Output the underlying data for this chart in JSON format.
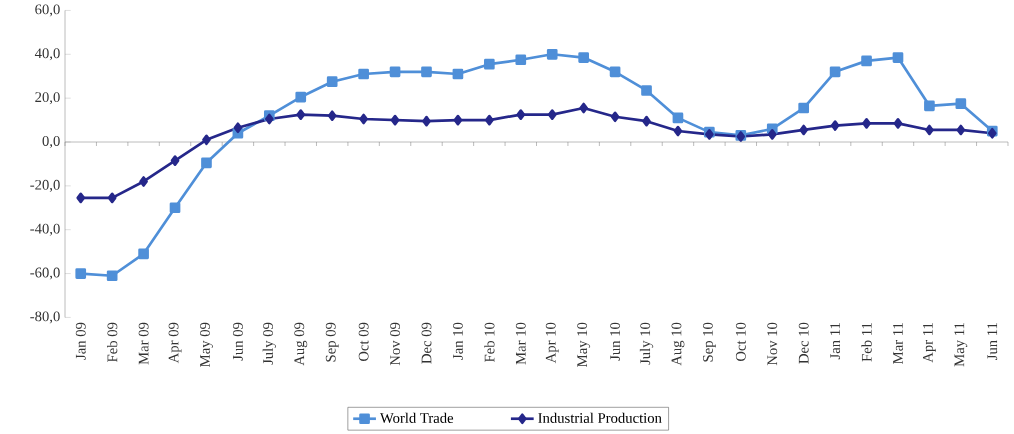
{
  "chart_data": {
    "type": "line",
    "categories": [
      "Jan 09",
      "Feb 09",
      "Mar 09",
      "Apr 09",
      "May 09",
      "Jun 09",
      "July 09",
      "Aug 09",
      "Sep 09",
      "Oct 09",
      "Nov 09",
      "Dec 09",
      "Jan 10",
      "Feb 10",
      "Mar 10",
      "Apr 10",
      "May 10",
      "Jun 10",
      "July 10",
      "Aug 10",
      "Sep 10",
      "Oct 10",
      "Nov 10",
      "Dec 10",
      "Jan 11",
      "Feb 11",
      "Mar 11",
      "Apr 11",
      "May 11",
      "Jun 11"
    ],
    "series": [
      {
        "name": "World Trade",
        "color": "#4f8fd8",
        "marker": "square",
        "values": [
          -60,
          -61,
          -51,
          -30,
          -9.5,
          4,
          12,
          20.5,
          27.5,
          31,
          32,
          32,
          31,
          35.5,
          37.5,
          40,
          38.5,
          32,
          23.5,
          11,
          4.5,
          3,
          6,
          15.5,
          32,
          37,
          38.5,
          16.5,
          17.5,
          5
        ]
      },
      {
        "name": "Industrial Production",
        "color": "#25278a",
        "marker": "diamond",
        "values": [
          -25.5,
          -25.5,
          -18,
          -8.5,
          1,
          6.5,
          10.5,
          12.5,
          12,
          10.5,
          10,
          9.5,
          10,
          10,
          12.5,
          12.5,
          15.5,
          11.5,
          9.5,
          5,
          3.5,
          2.5,
          3.5,
          5.5,
          7.5,
          8.5,
          8.5,
          5.5,
          5.5,
          4
        ]
      }
    ],
    "ylim": [
      -80,
      60
    ],
    "yticks": [
      {
        "value": -80,
        "label": "-80,0"
      },
      {
        "value": -60,
        "label": "-60,0"
      },
      {
        "value": -40,
        "label": "-40,0"
      },
      {
        "value": -20,
        "label": "-20,0"
      },
      {
        "value": 0,
        "label": "0,0"
      },
      {
        "value": 20,
        "label": "20,0"
      },
      {
        "value": 40,
        "label": "40,0"
      },
      {
        "value": 60,
        "label": "60,0"
      }
    ],
    "legend": "bottom"
  }
}
